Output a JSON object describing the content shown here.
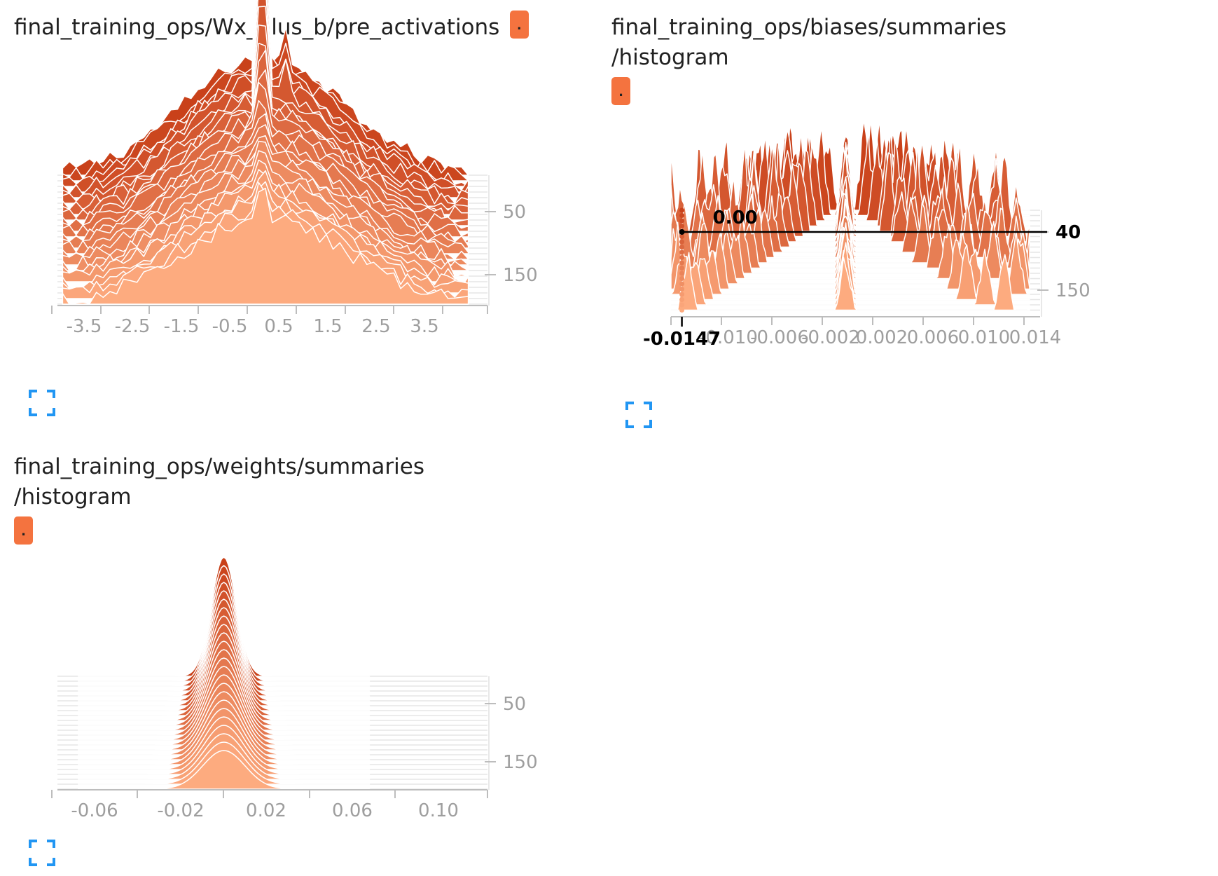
{
  "accent": "#f4733f",
  "expand_icon_color": "#2196f3",
  "run_badge_label": ".",
  "cards": [
    {
      "title": "final_training_ops/Wx_plus_b/pre_activations",
      "expand_icon": "expand-icon"
    },
    {
      "title_line1": "final_training_ops/biases/summaries",
      "title_line2": "/histogram",
      "expand_icon": "expand-icon",
      "hover": {
        "x_label": "-0.0147",
        "value_label": "0.00",
        "step_label": "40"
      }
    },
    {
      "title_line1": "final_training_ops/weights/summaries",
      "title_line2": "/histogram",
      "expand_icon": "expand-icon"
    }
  ],
  "chart_data": [
    {
      "type": "area",
      "mode": "offset",
      "title": "final_training_ops/Wx_plus_b/pre_activations",
      "x_ticks": [
        "-3.5",
        "-2.5",
        "-1.5",
        "-0.5",
        "0.5",
        "1.5",
        "2.5",
        "3.5"
      ],
      "xlim": [
        -4.0,
        4.0
      ],
      "step_ticks": [
        "50",
        "150"
      ],
      "step_range": [
        0,
        200
      ],
      "colors": {
        "early": "#c9411a",
        "late": "#fdab7f"
      }
    },
    {
      "type": "area",
      "mode": "offset",
      "title": "final_training_ops/biases/summaries/histogram",
      "x_ticks": [
        "-0.010",
        "-0.006",
        "-0.002",
        "0.002",
        "0.006",
        "0.010",
        "0.014"
      ],
      "xlim": [
        -0.0156,
        0.014
      ],
      "step_ticks": [
        "40",
        "150"
      ],
      "step_range": [
        0,
        200
      ],
      "hover": {
        "x": -0.0147,
        "step": 40,
        "value": 0.0
      },
      "colors": {
        "early": "#c9411a",
        "late": "#fdab7f"
      }
    },
    {
      "type": "area",
      "mode": "offset",
      "title": "final_training_ops/weights/summaries/histogram",
      "x_ticks": [
        "-0.06",
        "-0.02",
        "0.02",
        "0.06",
        "0.10"
      ],
      "xlim": [
        -0.08,
        0.12
      ],
      "step_ticks": [
        "50",
        "150"
      ],
      "step_range": [
        0,
        200
      ],
      "colors": {
        "early": "#c9411a",
        "late": "#fdab7f"
      }
    }
  ]
}
